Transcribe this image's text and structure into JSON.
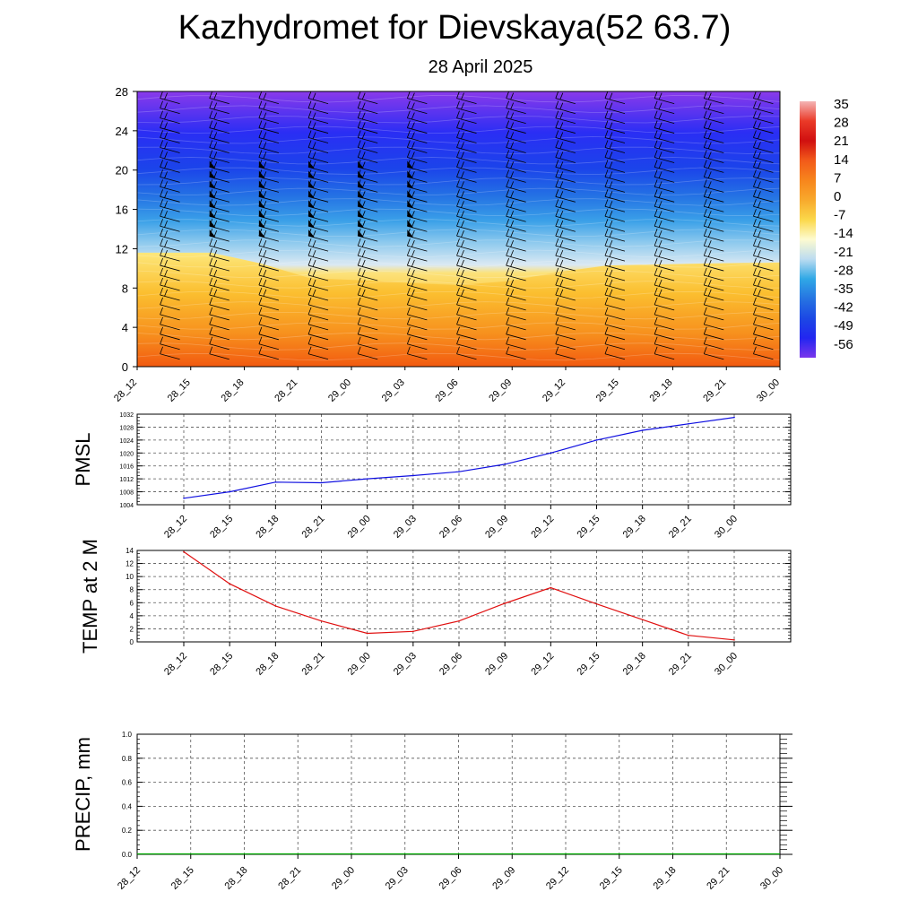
{
  "title": "Kazhydromet for Dievskaya(52 63.7)",
  "subtitle": "28 April 2025",
  "time_labels": [
    "28_12",
    "28_15",
    "28_18",
    "28_21",
    "29_00",
    "29_03",
    "29_06",
    "29_09",
    "29_12",
    "29_15",
    "29_18",
    "29_21",
    "30_00"
  ],
  "chart_data": [
    {
      "type": "heatmap",
      "name": "temperature cross-section",
      "x": [
        "28_12",
        "28_15",
        "28_18",
        "28_21",
        "29_00",
        "29_03",
        "29_06",
        "29_09",
        "29_12",
        "29_15",
        "29_18",
        "29_21",
        "30_00"
      ],
      "ylim": [
        0,
        28
      ],
      "yticks": [
        0,
        4,
        8,
        12,
        16,
        20,
        24,
        28
      ],
      "colorbar_labels": [
        "35",
        "28",
        "21",
        "14",
        "7",
        "0",
        "-7",
        "-14",
        "-21",
        "-28",
        "-35",
        "-42",
        "-49",
        "-56"
      ],
      "colorbar_colors": [
        "#f4b4b4",
        "#ea3a28",
        "#d01010",
        "#f25a1a",
        "#f7851c",
        "#f8a92c",
        "#fbd84a",
        "#fdfbd0",
        "#bcdcf0",
        "#30a8e6",
        "#2674e2",
        "#1c48e4",
        "#2226f0",
        "#7a36ec"
      ],
      "freezing_level_km": [
        11.6,
        11.6,
        10.5,
        9.0,
        8.8,
        8.5,
        8.3,
        8.7,
        9.6,
        10.3,
        10.4,
        10.5,
        10.6
      ],
      "wind_barb_columns": 13,
      "pennant_columns": [
        "28_15",
        "28_18",
        "28_21",
        "29_00",
        "29_03"
      ]
    },
    {
      "type": "line",
      "ylabel": "PMSL",
      "x": [
        "28_12",
        "28_15",
        "28_18",
        "28_21",
        "29_00",
        "29_03",
        "29_06",
        "29_09",
        "29_12",
        "29_15",
        "29_18",
        "29_21",
        "30_00"
      ],
      "series": [
        {
          "values": [
            1006,
            1008,
            1011,
            1010.8,
            1012,
            1013,
            1014.2,
            1016.5,
            1020,
            1024,
            1027,
            1029,
            1031
          ],
          "color": "#1010e0"
        }
      ],
      "ylim": [
        1004,
        1032
      ],
      "yticks": [
        1004,
        1008,
        1012,
        1016,
        1020,
        1024,
        1028,
        1032
      ],
      "grid": true
    },
    {
      "type": "line",
      "ylabel": "TEMP at 2 M",
      "x": [
        "28_12",
        "28_15",
        "28_18",
        "28_21",
        "29_00",
        "29_03",
        "29_06",
        "29_09",
        "29_12",
        "29_15",
        "29_18",
        "29_21",
        "30_00"
      ],
      "series": [
        {
          "values": [
            13.8,
            8.9,
            5.5,
            3.2,
            1.3,
            1.6,
            3.2,
            5.9,
            8.3,
            5.8,
            3.4,
            1.0,
            0.3
          ],
          "color": "#e01010"
        }
      ],
      "ylim": [
        0,
        14
      ],
      "yticks": [
        0,
        2,
        4,
        6,
        8,
        10,
        12,
        14
      ],
      "grid": true
    },
    {
      "type": "line",
      "ylabel": "PRECIP, mm",
      "x": [
        "28_12",
        "28_15",
        "28_18",
        "28_21",
        "29_00",
        "29_03",
        "29_06",
        "29_09",
        "29_12",
        "29_15",
        "29_18",
        "29_21",
        "30_00"
      ],
      "series": [
        {
          "values": [
            0,
            0,
            0,
            0,
            0,
            0,
            0,
            0,
            0,
            0,
            0,
            0,
            0
          ],
          "color": "#00aa00"
        }
      ],
      "ylim": [
        0.0,
        1.0
      ],
      "yticks": [
        "0.0",
        "0.2",
        "0.4",
        "0.6",
        "0.8",
        "1.0"
      ],
      "grid": true
    }
  ]
}
